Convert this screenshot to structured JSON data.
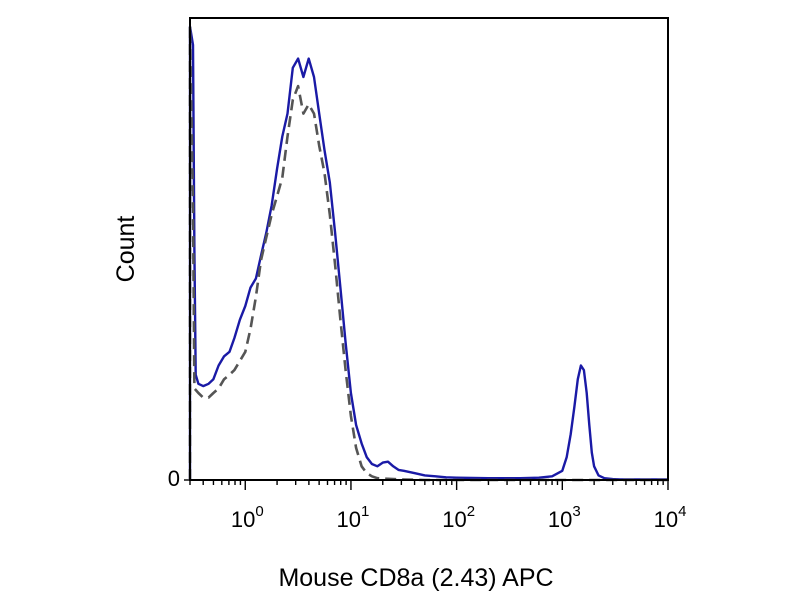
{
  "chart_data": {
    "type": "line",
    "title": "",
    "xlabel": "Mouse CD8a (2.43) APC",
    "ylabel": "Count",
    "x_scale": "log",
    "xlim": [
      0.3,
      10000
    ],
    "ylim": [
      0,
      1
    ],
    "y_ticks": [
      {
        "value": 0,
        "label": "0"
      }
    ],
    "x_ticks": [
      {
        "value": 1,
        "base": "10",
        "exp": "0"
      },
      {
        "value": 10,
        "base": "10",
        "exp": "1"
      },
      {
        "value": 100,
        "base": "10",
        "exp": "2"
      },
      {
        "value": 1000,
        "base": "10",
        "exp": "3"
      },
      {
        "value": 10000,
        "base": "10",
        "exp": "4"
      }
    ],
    "grid": false,
    "legend": "none",
    "series": [
      {
        "style": "solid",
        "color": "#1a1aa6",
        "x": [
          0.3,
          0.3,
          0.3,
          0.32,
          0.33,
          0.34,
          0.36,
          0.4,
          0.45,
          0.5,
          0.56,
          0.63,
          0.71,
          0.79,
          0.89,
          1.0,
          1.12,
          1.26,
          1.41,
          1.58,
          1.78,
          2.0,
          2.24,
          2.51,
          2.82,
          3.16,
          3.55,
          3.98,
          4.47,
          5.01,
          5.62,
          6.31,
          7.08,
          7.94,
          8.91,
          10.0,
          11.2,
          12.6,
          14.1,
          15.8,
          17.8,
          20.0,
          22.4,
          25.1,
          28.2,
          31.6,
          39.8,
          50.1,
          63.1,
          79.4,
          100,
          200,
          400,
          600,
          800,
          1000,
          1100,
          1200,
          1300,
          1400,
          1500,
          1600,
          1700,
          1800,
          1900,
          2000,
          2200,
          2500,
          3000,
          3500,
          5000,
          10000
        ],
        "y": [
          0.0,
          0.99,
          0.99,
          0.95,
          0.5,
          0.23,
          0.21,
          0.205,
          0.21,
          0.22,
          0.25,
          0.27,
          0.28,
          0.31,
          0.35,
          0.38,
          0.42,
          0.44,
          0.49,
          0.54,
          0.6,
          0.68,
          0.75,
          0.8,
          0.9,
          0.92,
          0.88,
          0.92,
          0.88,
          0.8,
          0.72,
          0.65,
          0.54,
          0.42,
          0.3,
          0.19,
          0.12,
          0.08,
          0.05,
          0.035,
          0.03,
          0.038,
          0.04,
          0.03,
          0.022,
          0.02,
          0.015,
          0.01,
          0.008,
          0.006,
          0.005,
          0.004,
          0.004,
          0.005,
          0.008,
          0.02,
          0.05,
          0.1,
          0.16,
          0.22,
          0.25,
          0.24,
          0.19,
          0.12,
          0.06,
          0.03,
          0.01,
          0.004,
          0.002,
          0.001,
          0.001,
          0.001
        ]
      },
      {
        "style": "dashed",
        "color": "#555555",
        "x": [
          0.3,
          0.3,
          0.3,
          0.32,
          0.33,
          0.36,
          0.4,
          0.45,
          0.5,
          0.56,
          0.63,
          0.71,
          0.79,
          0.89,
          1.0,
          1.12,
          1.26,
          1.41,
          1.58,
          1.78,
          2.0,
          2.24,
          2.51,
          2.82,
          3.16,
          3.55,
          3.98,
          4.47,
          5.01,
          5.62,
          6.31,
          7.08,
          7.94,
          8.91,
          10.0,
          11.2,
          12.6,
          14.1,
          15.8,
          17.8,
          20.0,
          25.1,
          31.6,
          50.1,
          100,
          1000,
          10000
        ],
        "y": [
          0.0,
          0.99,
          0.99,
          0.6,
          0.2,
          0.19,
          0.18,
          0.18,
          0.19,
          0.2,
          0.22,
          0.23,
          0.24,
          0.26,
          0.28,
          0.33,
          0.4,
          0.48,
          0.53,
          0.58,
          0.62,
          0.66,
          0.75,
          0.83,
          0.86,
          0.8,
          0.82,
          0.8,
          0.73,
          0.67,
          0.58,
          0.47,
          0.35,
          0.24,
          0.14,
          0.07,
          0.03,
          0.015,
          0.008,
          0.004,
          0.003,
          0.002,
          0.001,
          0.0,
          0.0,
          0.0,
          0.0
        ]
      }
    ]
  }
}
